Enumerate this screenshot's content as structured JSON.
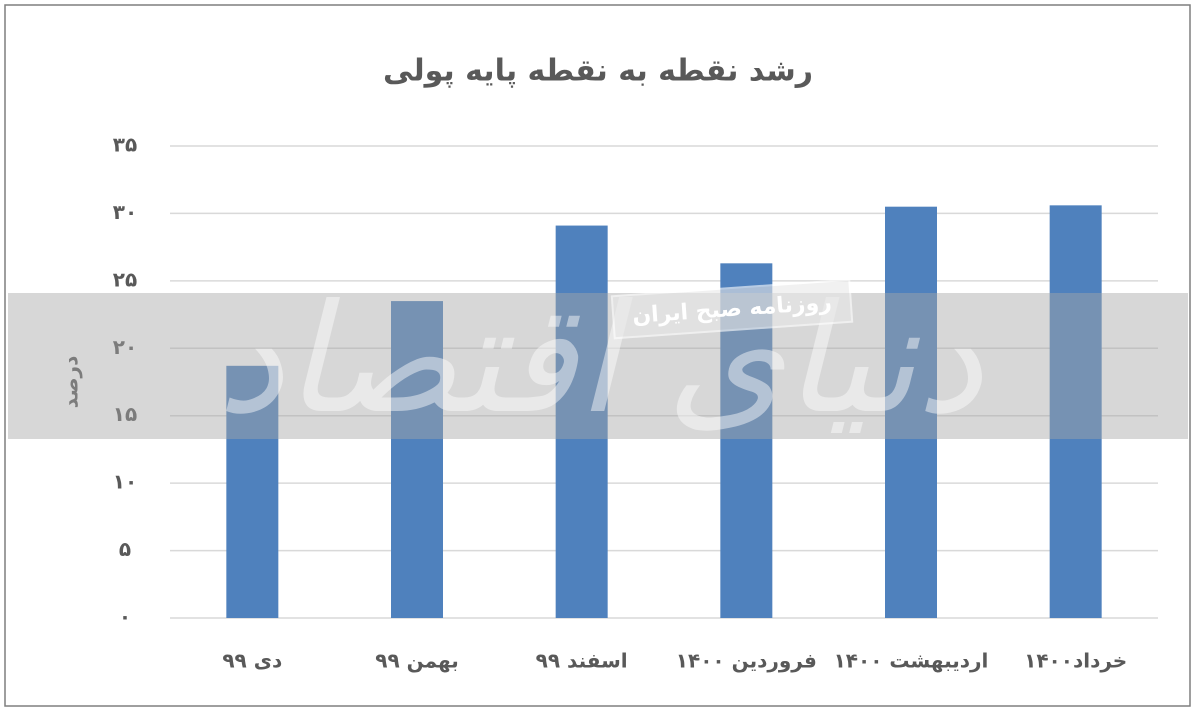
{
  "chart_data": {
    "type": "bar",
    "title": "رشد نقطه به نقطه پایه پولی",
    "y_label": "درصد",
    "categories": [
      "دی ۹۹",
      "بهمن ۹۹",
      "اسفند ۹۹",
      "فروردین ۱۴۰۰",
      "اردیبهشت ۱۴۰۰",
      "خرداد۱۴۰۰"
    ],
    "values": [
      18.7,
      23.5,
      29.1,
      26.3,
      30.5,
      30.6
    ],
    "color": "#4f81bd",
    "ylim": [
      0,
      35
    ],
    "yticks": [
      {
        "value": 0,
        "label": "۰"
      },
      {
        "value": 5,
        "label": "۵"
      },
      {
        "value": 10,
        "label": "۱۰"
      },
      {
        "value": 15,
        "label": "۱۵"
      },
      {
        "value": 20,
        "label": "۲۰"
      },
      {
        "value": 25,
        "label": "۲۵"
      },
      {
        "value": 30,
        "label": "۳۰"
      },
      {
        "value": 35,
        "label": "۳۵"
      }
    ],
    "grid": true,
    "watermark": "روزنامه صبح ایران",
    "brand": "دنیای اقتصاد"
  }
}
